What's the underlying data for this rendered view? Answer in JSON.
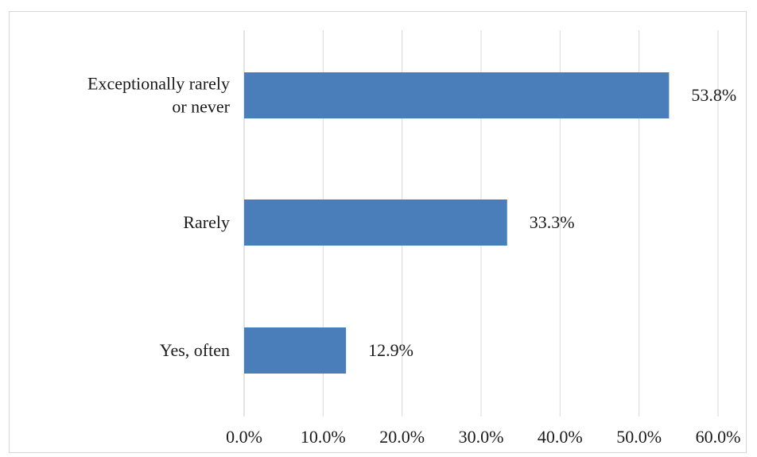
{
  "chart_data": {
    "type": "bar",
    "orientation": "horizontal",
    "title": "",
    "xlabel": "",
    "ylabel": "",
    "categories": [
      "Exceptionally rarely or never",
      "Rarely",
      "Yes, often"
    ],
    "category_label_lines": [
      [
        "Exceptionally rarely",
        "or never"
      ],
      [
        "Rarely"
      ],
      [
        "Yes, often"
      ]
    ],
    "values": [
      53.8,
      33.3,
      12.9
    ],
    "data_labels": [
      "53.8%",
      "33.3%",
      "12.9%"
    ],
    "xlim": [
      0,
      60
    ],
    "xticks": [
      0,
      10,
      20,
      30,
      40,
      50,
      60
    ],
    "xtick_labels": [
      "0.0%",
      "10.0%",
      "20.0%",
      "30.0%",
      "40.0%",
      "50.0%",
      "60.0%"
    ],
    "grid": "vertical",
    "legend": "none",
    "bar_color": "#4a7ebb",
    "grid_color": "#d9d9d9"
  }
}
